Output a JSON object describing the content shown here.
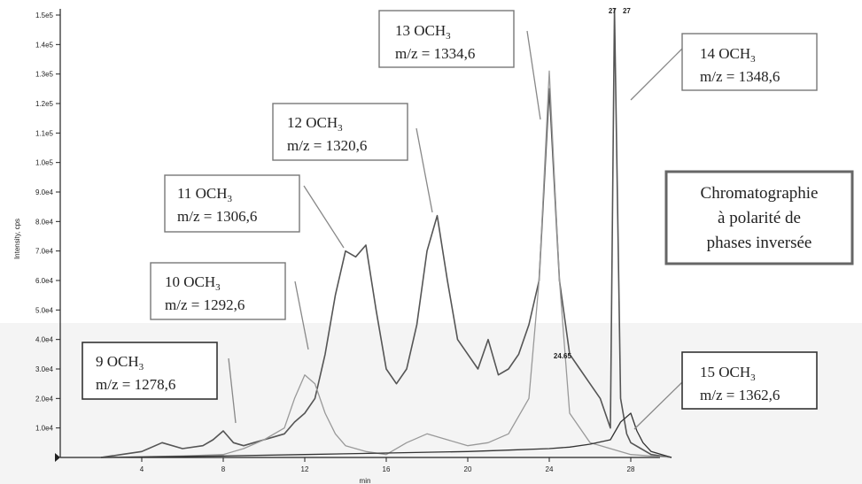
{
  "chart_data": {
    "type": "line",
    "xlabel": "min",
    "ylabel": "Intensity, cps",
    "xlim": [
      0,
      30
    ],
    "ylim": [
      0,
      150000
    ],
    "x_ticks": [
      4,
      8,
      12,
      16,
      20,
      24,
      28
    ],
    "x_tick_labels": [
      "4",
      "8",
      "12",
      "16",
      "20",
      "24",
      "28"
    ],
    "y_ticks": [
      10000,
      20000,
      30000,
      40000,
      50000,
      60000,
      70000,
      80000,
      90000,
      100000,
      110000,
      120000,
      130000,
      140000,
      150000
    ],
    "y_tick_labels": [
      "1.0e4",
      "2.0e4",
      "3.0e4",
      "4.0e4",
      "5.0e4",
      "6.0e4",
      "7.0e4",
      "8.0e4",
      "9.0e4",
      "1.0e5",
      "1.1e5",
      "1.2e5",
      "1.3e5",
      "1.4e5",
      "1.5e5"
    ],
    "peak_labels": [
      {
        "text": "27",
        "x": 27.1,
        "y": 150000
      },
      {
        "text": "27",
        "x": 27.8,
        "y": 150000
      },
      {
        "text": "24.65",
        "x": 24.65,
        "y": 33000
      }
    ],
    "series": [
      {
        "color": "#555555",
        "x": [
          2,
          3,
          4,
          5,
          6,
          7,
          7.5,
          8,
          8.5,
          9,
          9.5,
          10,
          10.5,
          11,
          11.5,
          12,
          12.5,
          13,
          13.5,
          14,
          14.5,
          15,
          15.5,
          16,
          16.5,
          17,
          17.5,
          18,
          18.5,
          19,
          19.5,
          20,
          20.5,
          21,
          21.5,
          22,
          22.5,
          23,
          23.5,
          24,
          24.5,
          25,
          25.5,
          26,
          26.5,
          27,
          27.2,
          27.5,
          27.8,
          28,
          28.5,
          29,
          30
        ],
        "y": [
          0,
          1000,
          2000,
          5000,
          3000,
          4000,
          6000,
          9000,
          5000,
          4000,
          5000,
          6000,
          7000,
          8000,
          12000,
          15000,
          20000,
          35000,
          55000,
          70000,
          68000,
          72000,
          50000,
          30000,
          25000,
          30000,
          45000,
          70000,
          82000,
          60000,
          40000,
          35000,
          30000,
          40000,
          28000,
          30000,
          35000,
          45000,
          60000,
          125000,
          60000,
          35000,
          30000,
          25000,
          20000,
          10000,
          152000,
          20000,
          8000,
          5000,
          3000,
          1000,
          0
        ]
      },
      {
        "color": "#999999",
        "x": [
          2,
          6,
          8,
          9,
          10,
          11,
          11.5,
          12,
          12.5,
          13,
          13.5,
          14,
          15,
          16,
          17,
          18,
          19,
          20,
          21,
          22,
          23,
          23.5,
          24,
          24.5,
          25,
          26,
          27,
          28,
          30
        ],
        "y": [
          0,
          500,
          1000,
          3000,
          6000,
          10000,
          20000,
          28000,
          25000,
          15000,
          8000,
          4000,
          2000,
          1000,
          5000,
          8000,
          6000,
          4000,
          5000,
          8000,
          20000,
          60000,
          131000,
          60000,
          15000,
          5000,
          3000,
          1000,
          0
        ]
      },
      {
        "color": "#333333",
        "x": [
          2,
          8,
          12,
          16,
          20,
          22,
          24,
          25,
          26,
          27,
          27.5,
          28,
          28.3,
          28.6,
          29,
          30
        ],
        "y": [
          0,
          500,
          1000,
          1500,
          2000,
          2500,
          3000,
          3500,
          4500,
          6000,
          12000,
          15000,
          9000,
          5000,
          2000,
          0
        ]
      }
    ]
  },
  "annotations": [
    {
      "line1": "9 OCH",
      "line2": "m/z = 1278,6"
    },
    {
      "line1": "10 OCH",
      "line2": "m/z = 1292,6"
    },
    {
      "line1": "11 OCH",
      "line2": "m/z = 1306,6"
    },
    {
      "line1": "12 OCH",
      "line2": "m/z = 1320,6"
    },
    {
      "line1": "13 OCH",
      "line2": "m/z = 1334,6"
    },
    {
      "line1": "14 OCH",
      "line2": "m/z = 1348,6"
    },
    {
      "line1": "15 OCH",
      "line2": "m/z = 1362,6"
    }
  ],
  "subscript": "3",
  "method_box": {
    "line1": "Chromatographie",
    "line2": "à polarité de",
    "line3": "phases inversée"
  }
}
